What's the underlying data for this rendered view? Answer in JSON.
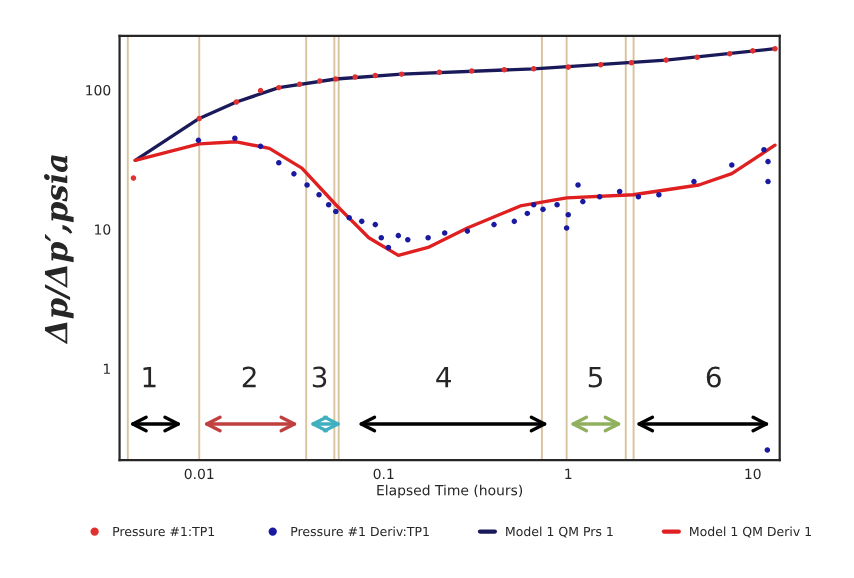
{
  "chart_data": {
    "type": "scatter",
    "log": "xy",
    "xlabel": "Elapsed Time (hours)",
    "ylabel": "Δp/Δp′,psia",
    "xlim": [
      0.0037,
      14
    ],
    "ylim": [
      0.22,
      245
    ],
    "xticks": [
      0.01,
      0.1,
      1,
      10
    ],
    "yticks": [
      1,
      10,
      100
    ],
    "grid": false,
    "legend": "bottom",
    "series": [
      {
        "name": "Pressure #1:TP1",
        "marker": "circle",
        "color": "#e03030",
        "x": [
          0.0044,
          0.01,
          0.0159,
          0.0215,
          0.027,
          0.035,
          0.045,
          0.055,
          0.07,
          0.09,
          0.125,
          0.2,
          0.3,
          0.45,
          0.65,
          1.0,
          1.5,
          2.2,
          3.39,
          5.0,
          7.5,
          10.0,
          13.2
        ],
        "values": [
          23.3,
          62.5,
          82,
          99,
          104,
          110,
          116,
          120,
          124,
          127,
          130,
          134,
          137,
          140,
          142,
          146,
          152,
          157,
          164,
          172,
          182,
          191,
          198
        ]
      },
      {
        "name": "Pressure #1 Deriv:TP1",
        "marker": "circle",
        "color": "#1a1aa0",
        "x": [
          0.0099,
          0.0156,
          0.0215,
          0.027,
          0.0326,
          0.0384,
          0.0446,
          0.0503,
          0.055,
          0.065,
          0.076,
          0.09,
          0.097,
          0.106,
          0.12,
          0.135,
          0.174,
          0.214,
          0.284,
          0.396,
          0.51,
          0.6,
          0.65,
          0.73,
          0.87,
          0.98,
          1.0,
          1.13,
          1.2,
          1.48,
          1.9,
          2.4,
          3.1,
          4.8,
          7.7,
          11.5,
          12.1,
          12.1,
          12.0
        ],
        "values": [
          43.5,
          45,
          39.4,
          30,
          25,
          20.8,
          17.7,
          15,
          13.4,
          12.1,
          11.4,
          10.8,
          8.7,
          7.4,
          9.0,
          8.4,
          8.7,
          9.4,
          9.7,
          10.8,
          11.4,
          13.0,
          15.0,
          13.9,
          15.0,
          10.2,
          12.7,
          20.8,
          15.8,
          17.1,
          18.7,
          17.1,
          17.7,
          22,
          28.9,
          37.3,
          30.6,
          22,
          0.26
        ]
      },
      {
        "name": "Model 1 QM Prs 1",
        "type": "line",
        "marker": "none",
        "color": "#1a1a5a",
        "x": [
          0.0045,
          0.01,
          0.0159,
          0.027,
          0.055,
          0.125,
          0.65,
          3.39,
          13.2
        ],
        "values": [
          31.3,
          62.5,
          82,
          104,
          120,
          130,
          142,
          164,
          198
        ]
      },
      {
        "name": "Model 1 QM Deriv 1",
        "type": "line",
        "marker": "none",
        "color": "#e02020",
        "x": [
          0.0045,
          0.01,
          0.0159,
          0.024,
          0.036,
          0.055,
          0.083,
          0.12,
          0.174,
          0.284,
          0.55,
          0.98,
          2.25,
          5.1,
          7.7,
          13.2
        ],
        "values": [
          31.3,
          41.1,
          42.5,
          38.1,
          27.5,
          15,
          8.7,
          6.5,
          7.4,
          10.2,
          14.7,
          16.8,
          17.7,
          20.8,
          25.1,
          40.2
        ]
      }
    ],
    "ref_lines": [
      {
        "axis": "x",
        "value": 0.0041,
        "color": "#d9c3a0"
      },
      {
        "axis": "x",
        "value": 0.01,
        "color": "#d9c3a0"
      },
      {
        "axis": "x",
        "value": 0.038,
        "color": "#d9c3a0"
      },
      {
        "axis": "x",
        "value": 0.054,
        "color": "#d9c3a0"
      },
      {
        "axis": "x",
        "value": 0.057,
        "color": "#d9c3a0"
      },
      {
        "axis": "x",
        "value": 0.72,
        "color": "#d9c3a0"
      },
      {
        "axis": "x",
        "value": 0.98,
        "color": "#d9c3a0"
      },
      {
        "axis": "x",
        "value": 2.05,
        "color": "#d9c3a0"
      },
      {
        "axis": "x",
        "value": 2.26,
        "color": "#d9c3a0"
      }
    ],
    "annotations": [
      "1",
      "2",
      "3",
      "4",
      "5",
      "6"
    ]
  }
}
